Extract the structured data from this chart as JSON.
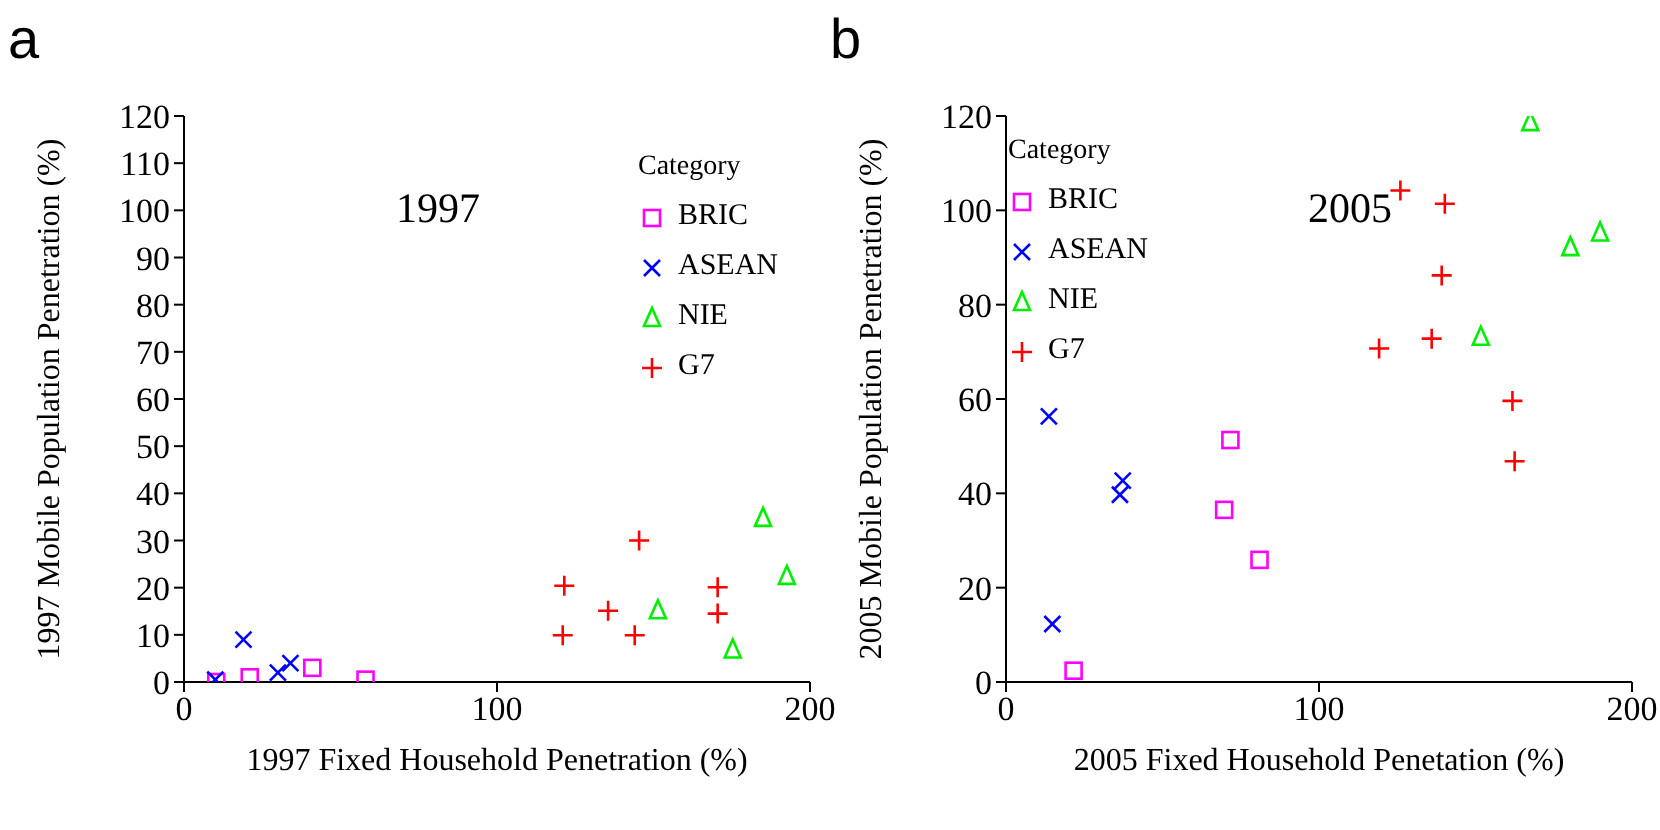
{
  "chart_data": [
    {
      "type": "scatter",
      "title": "1997",
      "xlabel": "1997 Fixed Household Penetration (%)",
      "ylabel": "1997 Mobile Population Penetration (%)",
      "legend_title": "Category",
      "annotations": [
        "a"
      ],
      "legend": "top right",
      "xlim": [
        0,
        200
      ],
      "xticks": [
        0,
        100,
        200
      ],
      "ylim": [
        0,
        120
      ],
      "yticks": [
        0,
        10,
        20,
        30,
        40,
        50,
        60,
        70,
        80,
        90,
        100,
        110,
        120
      ],
      "grid": false,
      "series": [
        {
          "name": "BRIC",
          "color": "#ff00ff",
          "marker": "square",
          "x": [
            10.3,
            21,
            41,
            58
          ],
          "values": [
            0,
            1,
            3,
            0.5
          ]
        },
        {
          "name": "ASEAN",
          "color": "#0000ff",
          "marker": "cross",
          "x": [
            10,
            19,
            30,
            34
          ],
          "values": [
            0.5,
            9,
            2,
            4
          ]
        },
        {
          "name": "NIE",
          "color": "#00ee00",
          "marker": "triangle",
          "x": [
            185,
            192.6,
            151.4,
            175.3
          ],
          "values": [
            34.8,
            22.5,
            15.2,
            6.9
          ]
        },
        {
          "name": "G7",
          "color": "#ff0000",
          "marker": "plus",
          "x": [
            145.4,
            121.5,
            121,
            135.5,
            144,
            170.5,
            170.5
          ],
          "values": [
            30,
            20.4,
            9.9,
            15.1,
            9.9,
            20.1,
            14.5
          ]
        }
      ]
    },
    {
      "type": "scatter",
      "title": "2005",
      "xlabel": "2005 Fixed Household Penetation (%)",
      "ylabel": "2005 Mobile Population Penetration (%)",
      "legend_title": "Category",
      "annotations": [
        "b"
      ],
      "legend": "top left",
      "xlim": [
        0,
        200
      ],
      "xticks": [
        0,
        100,
        200
      ],
      "ylim": [
        0,
        120
      ],
      "yticks": [
        0,
        20,
        40,
        60,
        80,
        100,
        120
      ],
      "grid": false,
      "series": [
        {
          "name": "BRIC",
          "color": "#ff00ff",
          "marker": "square",
          "x": [
            71.7,
            69.7,
            81,
            21.6
          ],
          "values": [
            51.3,
            36.5,
            25.9,
            2.4
          ]
        },
        {
          "name": "ASEAN",
          "color": "#0000ff",
          "marker": "cross",
          "x": [
            13.7,
            37.3,
            36.4,
            14.8
          ],
          "values": [
            56.3,
            42.7,
            39.7,
            12.3
          ]
        },
        {
          "name": "NIE",
          "color": "#00ee00",
          "marker": "triangle",
          "x": [
            167.5,
            180.3,
            189.8,
            151.7
          ],
          "values": [
            118.7,
            92.2,
            95.3,
            73.2
          ]
        },
        {
          "name": "G7",
          "color": "#ff0000",
          "marker": "plus",
          "x": [
            126,
            140.2,
            139.2,
            119.2,
            136,
            161.8,
            162.5
          ],
          "values": [
            104.2,
            101.4,
            86.2,
            70.7,
            72.8,
            59.6,
            46.8
          ]
        }
      ]
    }
  ]
}
